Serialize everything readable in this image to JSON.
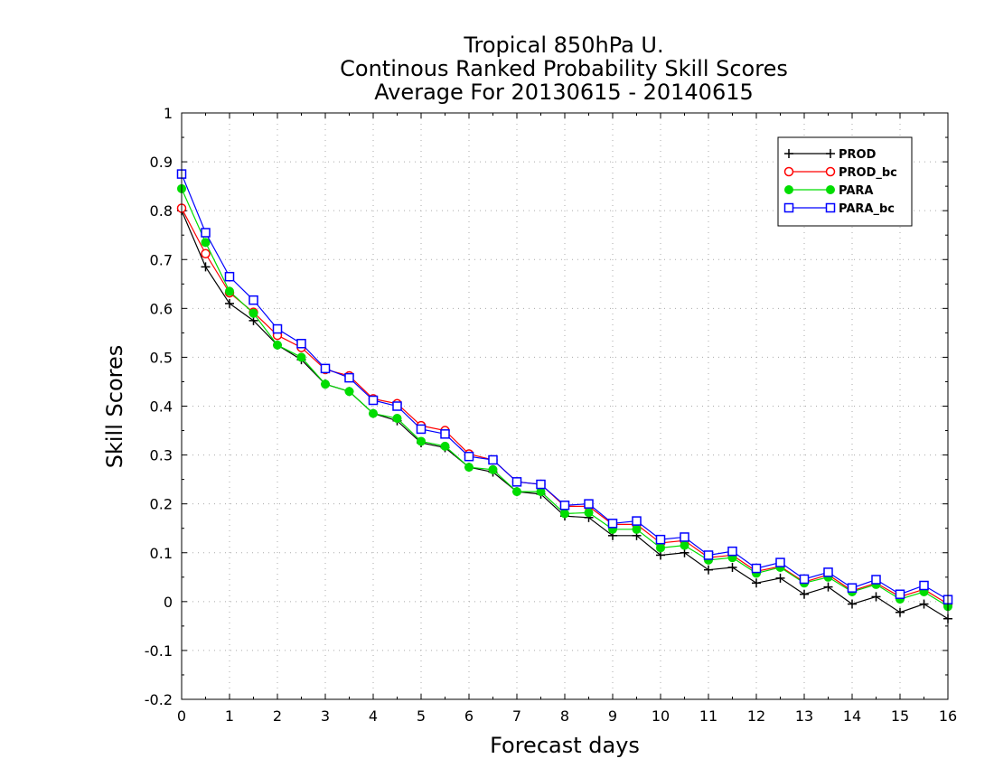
{
  "chart_data": {
    "type": "line",
    "title": [
      "Tropical 850hPa U.",
      "Continous Ranked Probability Skill Scores",
      "Average For 20130615 - 20140615"
    ],
    "xlabel": "Forecast days",
    "ylabel": "Skill Scores",
    "xlim": [
      0,
      16
    ],
    "ylim": [
      -0.2,
      1
    ],
    "x_ticks": [
      0,
      1,
      2,
      3,
      4,
      5,
      6,
      7,
      8,
      9,
      10,
      11,
      12,
      13,
      14,
      15,
      16
    ],
    "y_ticks": [
      -0.2,
      -0.1,
      0,
      0.1,
      0.2,
      0.3,
      0.4,
      0.5,
      0.6,
      0.7,
      0.8,
      0.9,
      1
    ],
    "y_tick_labels": [
      "-0.2",
      "-0.1",
      "0",
      "0.1",
      "0.2",
      "0.3",
      "0.4",
      "0.5",
      "0.6",
      "0.7",
      "0.8",
      "0.9",
      "1"
    ],
    "grid": true,
    "legend_position": "top-right",
    "x": [
      0,
      0.5,
      1,
      1.5,
      2,
      2.5,
      3,
      3.5,
      4,
      4.5,
      5,
      5.5,
      6,
      6.5,
      7,
      7.5,
      8,
      8.5,
      9,
      9.5,
      10,
      10.5,
      11,
      11.5,
      12,
      12.5,
      13,
      13.5,
      14,
      14.5,
      15,
      15.5,
      16
    ],
    "series": [
      {
        "name": "PROD",
        "color": "#000000",
        "marker": "plus",
        "values": [
          0.8,
          0.685,
          0.61,
          0.575,
          0.525,
          0.495,
          0.445,
          0.43,
          0.385,
          0.37,
          0.325,
          0.315,
          0.275,
          0.265,
          0.225,
          0.22,
          0.175,
          0.172,
          0.135,
          0.135,
          0.095,
          0.1,
          0.065,
          0.07,
          0.038,
          0.048,
          0.015,
          0.03,
          -0.005,
          0.01,
          -0.022,
          -0.005,
          -0.035
        ]
      },
      {
        "name": "PROD_bc",
        "color": "#ff0000",
        "marker": "open-circle",
        "values": [
          0.805,
          0.712,
          0.632,
          0.592,
          0.545,
          0.52,
          0.475,
          0.462,
          0.415,
          0.405,
          0.36,
          0.35,
          0.302,
          0.29,
          0.245,
          0.24,
          0.195,
          0.195,
          0.158,
          0.158,
          0.12,
          0.125,
          0.09,
          0.095,
          0.062,
          0.072,
          0.04,
          0.055,
          0.022,
          0.038,
          0.01,
          0.025,
          -0.005
        ]
      },
      {
        "name": "PARA",
        "color": "#00dd00",
        "marker": "filled-circle",
        "values": [
          0.845,
          0.735,
          0.635,
          0.59,
          0.525,
          0.5,
          0.445,
          0.43,
          0.385,
          0.375,
          0.328,
          0.318,
          0.275,
          0.27,
          0.225,
          0.225,
          0.18,
          0.182,
          0.148,
          0.148,
          0.11,
          0.115,
          0.085,
          0.09,
          0.058,
          0.07,
          0.038,
          0.05,
          0.02,
          0.035,
          0.005,
          0.02,
          -0.01
        ]
      },
      {
        "name": "PARA_bc",
        "color": "#0000ff",
        "marker": "open-square",
        "values": [
          0.875,
          0.755,
          0.665,
          0.617,
          0.558,
          0.528,
          0.477,
          0.458,
          0.412,
          0.4,
          0.353,
          0.343,
          0.297,
          0.29,
          0.245,
          0.24,
          0.197,
          0.2,
          0.16,
          0.165,
          0.127,
          0.132,
          0.095,
          0.103,
          0.068,
          0.08,
          0.046,
          0.06,
          0.028,
          0.045,
          0.015,
          0.033,
          0.004
        ]
      }
    ]
  }
}
